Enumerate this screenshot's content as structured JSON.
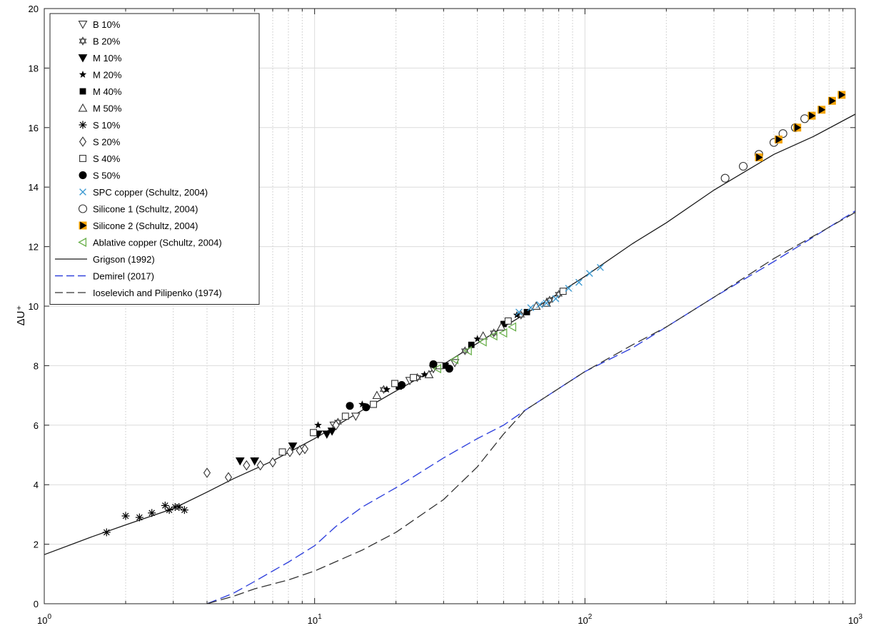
{
  "chart_data": {
    "type": "scatter",
    "title": "",
    "xlabel": "",
    "ylabel": "ΔU⁺",
    "x_scale": "log",
    "xlim": [
      1,
      1000
    ],
    "ylim": [
      0,
      20
    ],
    "grid": true,
    "legend_position": "top-left",
    "x_ticks": [
      {
        "value": 1,
        "base": "10",
        "exp": "0"
      },
      {
        "value": 10,
        "base": "10",
        "exp": "1"
      },
      {
        "value": 100,
        "base": "10",
        "exp": "2"
      },
      {
        "value": 1000,
        "base": "10",
        "exp": "3"
      }
    ],
    "y_ticks": [
      0,
      2,
      4,
      6,
      8,
      10,
      12,
      14,
      16,
      18,
      20
    ],
    "series": [
      {
        "name": "B 10%",
        "marker": "triangle-down-open",
        "color": "#333333",
        "points": [
          [
            11.8,
            6.0
          ],
          [
            14.2,
            6.3
          ],
          [
            22.5,
            7.5
          ],
          [
            27.5,
            7.9
          ],
          [
            33,
            8.1
          ]
        ]
      },
      {
        "name": "B 20%",
        "marker": "hexagram-open",
        "color": "#333333",
        "points": [
          [
            12.2,
            6.1
          ],
          [
            18.0,
            7.2
          ],
          [
            24.0,
            7.6
          ],
          [
            36,
            8.5
          ],
          [
            46,
            9.1
          ],
          [
            58,
            9.7
          ],
          [
            74,
            10.2
          ],
          [
            80,
            10.4
          ]
        ]
      },
      {
        "name": "M 10%",
        "marker": "triangle-down-filled",
        "color": "#000000",
        "points": [
          [
            5.3,
            4.8
          ],
          [
            6.0,
            4.8
          ],
          [
            8.3,
            5.3
          ],
          [
            10.3,
            5.7
          ],
          [
            11.1,
            5.7
          ],
          [
            11.6,
            5.8
          ]
        ]
      },
      {
        "name": "M 20%",
        "marker": "star-filled",
        "color": "#000000",
        "points": [
          [
            10.3,
            6.0
          ],
          [
            15.0,
            6.7
          ],
          [
            18.5,
            7.2
          ],
          [
            25.5,
            7.7
          ],
          [
            40,
            8.9
          ],
          [
            56,
            9.7
          ]
        ]
      },
      {
        "name": "M 40%",
        "marker": "square-filled",
        "color": "#000000",
        "points": [
          [
            20.5,
            7.3
          ],
          [
            30.5,
            8.0
          ],
          [
            38,
            8.7
          ],
          [
            50,
            9.4
          ],
          [
            61,
            9.8
          ]
        ]
      },
      {
        "name": "M 50%",
        "marker": "triangle-up-open",
        "color": "#333333",
        "points": [
          [
            17.0,
            7.0
          ],
          [
            26.5,
            7.7
          ],
          [
            42,
            9.0
          ],
          [
            49,
            9.3
          ],
          [
            66,
            10.0
          ],
          [
            72,
            10.1
          ]
        ]
      },
      {
        "name": "S 10%",
        "marker": "asterisk",
        "color": "#000000",
        "points": [
          [
            1.7,
            2.4
          ],
          [
            2.0,
            2.95
          ],
          [
            2.25,
            2.9
          ],
          [
            2.5,
            3.05
          ],
          [
            2.8,
            3.3
          ],
          [
            2.9,
            3.15
          ],
          [
            3.05,
            3.25
          ],
          [
            3.15,
            3.25
          ],
          [
            3.3,
            3.15
          ]
        ]
      },
      {
        "name": "S 20%",
        "marker": "diamond-open",
        "color": "#333333",
        "points": [
          [
            4.0,
            4.4
          ],
          [
            4.8,
            4.25
          ],
          [
            5.6,
            4.65
          ],
          [
            6.3,
            4.65
          ],
          [
            7.0,
            4.75
          ],
          [
            8.1,
            5.1
          ],
          [
            8.8,
            5.15
          ],
          [
            9.2,
            5.2
          ],
          [
            12.0,
            6.0
          ]
        ]
      },
      {
        "name": "S 40%",
        "marker": "square-open",
        "color": "#333333",
        "points": [
          [
            7.6,
            5.1
          ],
          [
            9.9,
            5.75
          ],
          [
            13.0,
            6.3
          ],
          [
            16.5,
            6.7
          ],
          [
            19.8,
            7.4
          ],
          [
            23.2,
            7.6
          ],
          [
            29.0,
            8.0
          ],
          [
            52,
            9.5
          ],
          [
            83,
            10.5
          ]
        ]
      },
      {
        "name": "S 50%",
        "marker": "circle-filled",
        "color": "#000000",
        "points": [
          [
            13.5,
            6.65
          ],
          [
            15.5,
            6.6
          ],
          [
            21.0,
            7.35
          ],
          [
            27.5,
            8.05
          ],
          [
            31.5,
            7.9
          ]
        ]
      },
      {
        "name": "SPC copper (Schultz, 2004)",
        "marker": "cross",
        "color": "#3d9ad1",
        "points": [
          [
            57,
            9.8
          ],
          [
            63,
            9.95
          ],
          [
            68,
            10.05
          ],
          [
            72,
            10.1
          ],
          [
            78,
            10.25
          ],
          [
            87,
            10.6
          ],
          [
            95,
            10.8
          ],
          [
            104,
            11.1
          ],
          [
            114,
            11.3
          ]
        ]
      },
      {
        "name": "Silicone 1 (Schultz, 2004)",
        "marker": "circle-open",
        "color": "#333333",
        "points": [
          [
            330,
            14.3
          ],
          [
            385,
            14.7
          ],
          [
            440,
            15.1
          ],
          [
            500,
            15.5
          ],
          [
            540,
            15.8
          ],
          [
            600,
            16.0
          ],
          [
            650,
            16.3
          ]
        ]
      },
      {
        "name": "Silicone 2 (Schultz, 2004)",
        "marker": "triangle-right-orange",
        "color": "#f5a400",
        "points": [
          [
            440,
            15.0
          ],
          [
            520,
            15.6
          ],
          [
            610,
            16.0
          ],
          [
            690,
            16.4
          ],
          [
            750,
            16.6
          ],
          [
            820,
            16.9
          ],
          [
            890,
            17.1
          ]
        ]
      },
      {
        "name": "Ablative copper (Schultz, 2004)",
        "marker": "triangle-left-open",
        "color": "#6ab04c",
        "points": [
          [
            28.5,
            7.9
          ],
          [
            33,
            8.2
          ],
          [
            37,
            8.5
          ],
          [
            42,
            8.8
          ],
          [
            46,
            9.0
          ],
          [
            50,
            9.1
          ],
          [
            54,
            9.3
          ]
        ]
      },
      {
        "name": "Grigson (1992)",
        "marker": "line-solid",
        "color": "#1a1a1a",
        "points": [
          [
            1,
            1.65
          ],
          [
            1.5,
            2.25
          ],
          [
            2,
            2.65
          ],
          [
            3,
            3.2
          ],
          [
            4,
            3.75
          ],
          [
            5,
            4.2
          ],
          [
            7,
            4.8
          ],
          [
            10,
            5.55
          ],
          [
            15,
            6.5
          ],
          [
            20,
            7.15
          ],
          [
            30,
            8.05
          ],
          [
            40,
            8.75
          ],
          [
            50,
            9.3
          ],
          [
            70,
            10.1
          ],
          [
            100,
            11.0
          ],
          [
            150,
            12.1
          ],
          [
            200,
            12.8
          ],
          [
            300,
            13.9
          ],
          [
            500,
            15.1
          ],
          [
            700,
            15.7
          ],
          [
            1000,
            16.45
          ]
        ]
      },
      {
        "name": "Demirel (2017)",
        "marker": "line-dash-blue",
        "color": "#3344dd",
        "points": [
          [
            4,
            0
          ],
          [
            5,
            0.35
          ],
          [
            6,
            0.75
          ],
          [
            7,
            1.1
          ],
          [
            8,
            1.4
          ],
          [
            10,
            1.95
          ],
          [
            12,
            2.6
          ],
          [
            15,
            3.25
          ],
          [
            20,
            3.9
          ],
          [
            30,
            4.9
          ],
          [
            40,
            5.55
          ],
          [
            50,
            6.0
          ],
          [
            60,
            6.5
          ],
          [
            100,
            7.8
          ],
          [
            150,
            8.6
          ],
          [
            200,
            9.3
          ],
          [
            300,
            10.3
          ],
          [
            500,
            11.5
          ],
          [
            1000,
            13.2
          ]
        ]
      },
      {
        "name": "Ioselevich and Pilipenko (1974)",
        "marker": "line-dash-black",
        "color": "#333333",
        "points": [
          [
            4,
            0
          ],
          [
            5,
            0.25
          ],
          [
            6,
            0.5
          ],
          [
            8,
            0.8
          ],
          [
            10,
            1.1
          ],
          [
            15,
            1.8
          ],
          [
            20,
            2.4
          ],
          [
            30,
            3.5
          ],
          [
            40,
            4.6
          ],
          [
            50,
            5.7
          ],
          [
            60,
            6.5
          ],
          [
            100,
            7.8
          ],
          [
            150,
            8.7
          ],
          [
            200,
            9.3
          ],
          [
            300,
            10.3
          ],
          [
            500,
            11.6
          ],
          [
            1000,
            13.15
          ]
        ]
      }
    ]
  }
}
